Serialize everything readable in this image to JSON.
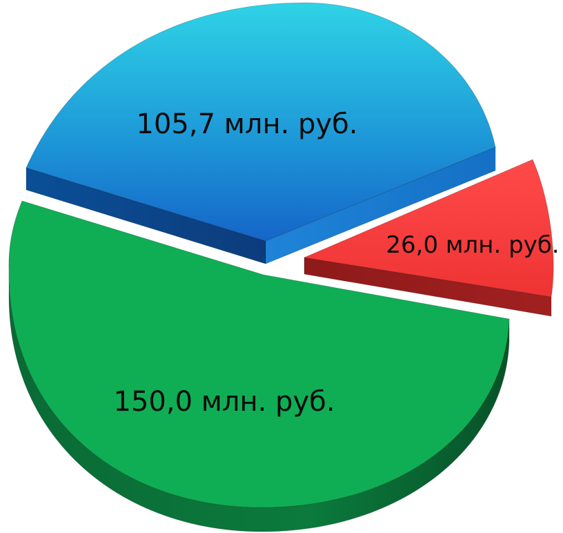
{
  "chart_data": {
    "type": "pie",
    "style": "3d-exploded",
    "slices": [
      {
        "label": "105,7 млн. руб.",
        "value": 105.7,
        "color": "#1f8fd6"
      },
      {
        "label": "26,0 млн. руб.",
        "value": 26.0,
        "color": "#f53b3b"
      },
      {
        "label": "150,0 млн. руб.",
        "value": 150.0,
        "color": "#0fae55"
      }
    ]
  }
}
